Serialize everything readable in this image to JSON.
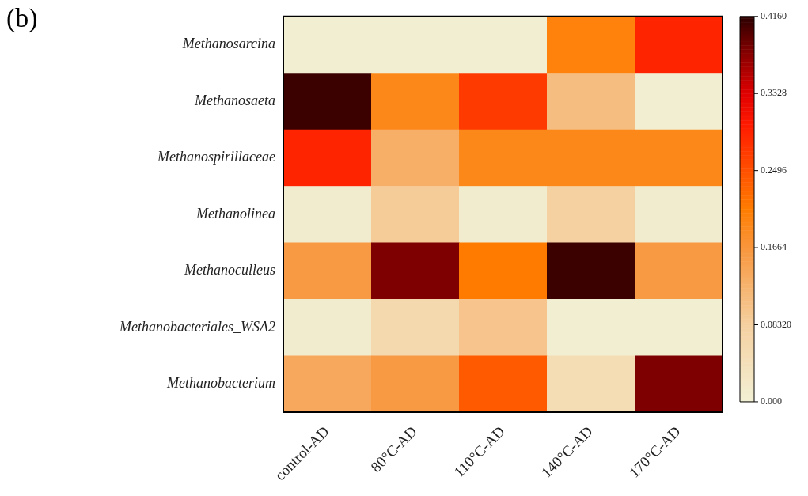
{
  "chart_data": {
    "type": "heatmap",
    "annotations": [
      "(b)"
    ],
    "categories": [
      "control-AD",
      "80°C-AD",
      "110°C-AD",
      "140°C-AD",
      "170°C-AD"
    ],
    "y_categories": [
      "Methanosarcina",
      "Methanosaeta",
      "Methanospirillaceae",
      "Methanolinea",
      "Methanoculleus",
      "Methanobacteriales_WSA2",
      "Methanobacterium"
    ],
    "cells": [
      [
        0.005,
        0.005,
        0.005,
        0.2,
        0.29
      ],
      [
        0.41,
        0.19,
        0.27,
        0.11,
        0.005
      ],
      [
        0.29,
        0.13,
        0.19,
        0.19,
        0.19
      ],
      [
        0.01,
        0.09,
        0.01,
        0.08,
        0.01
      ],
      [
        0.16,
        0.38,
        0.21,
        0.41,
        0.16
      ],
      [
        0.01,
        0.06,
        0.1,
        0.005,
        0.005
      ],
      [
        0.14,
        0.16,
        0.24,
        0.05,
        0.38
      ]
    ],
    "clim": [
      0,
      0.416
    ],
    "cticks": [
      {
        "value": 0,
        "label": "0.000"
      },
      {
        "value": 0.0832,
        "label": "0.08320"
      },
      {
        "value": 0.1664,
        "label": "0.1664"
      },
      {
        "value": 0.2496,
        "label": "0.2496"
      },
      {
        "value": 0.3328,
        "label": "0.3328"
      },
      {
        "value": 0.416,
        "label": "0.4160"
      }
    ]
  }
}
